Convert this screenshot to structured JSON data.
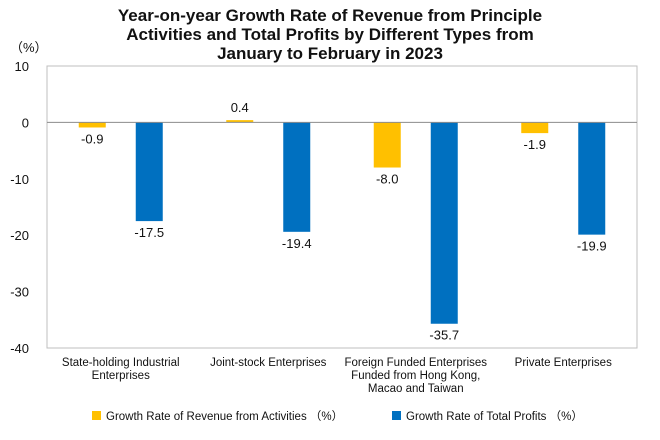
{
  "chart_data": {
    "type": "bar",
    "title_lines": [
      "Year-on-year Growth Rate of Revenue from Principle",
      "Activities and Total Profits by Different Types from",
      "January to February in 2023"
    ],
    "ylabel": "（%）",
    "ylim": [
      -40,
      10
    ],
    "yticks": [
      10,
      0,
      -10,
      -20,
      -30,
      -40
    ],
    "grid": false,
    "legend_position": "bottom",
    "categories": [
      [
        "State-holding Industrial",
        "Enterprises"
      ],
      [
        "Joint-stock Enterprises"
      ],
      [
        "Foreign Funded Enterprises",
        "Funded from Hong Kong,",
        "Macao and Taiwan"
      ],
      [
        "Private Enterprises"
      ]
    ],
    "series": [
      {
        "name": "Growth Rate of Revenue from Activities （%）",
        "color": "#FFC000",
        "values": [
          -0.9,
          0.4,
          -8.0,
          -1.9
        ],
        "labels": [
          "-0.9",
          "0.4",
          "-8.0",
          "-1.9"
        ]
      },
      {
        "name": "Growth Rate of Total Profits （%）",
        "color": "#0070C0",
        "values": [
          -17.5,
          -19.4,
          -35.7,
          -19.9
        ],
        "labels": [
          "-17.5",
          "-19.4",
          "-35.7",
          "-19.9"
        ]
      }
    ]
  }
}
